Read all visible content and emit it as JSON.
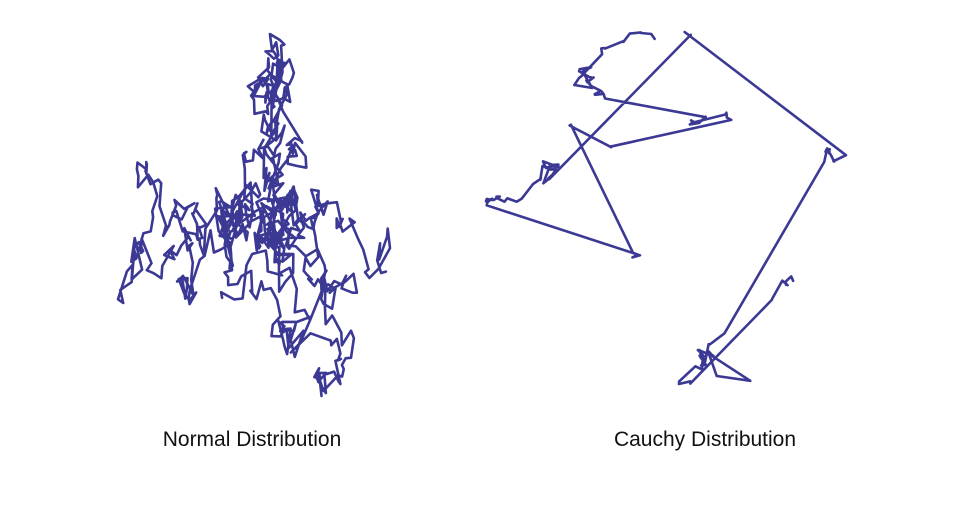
{
  "figure": {
    "line_color": "#3b3994",
    "background": "#ffffff",
    "panels": [
      {
        "id": "normal",
        "caption": "Normal Distribution",
        "distribution": "normal",
        "steps": 700
      },
      {
        "id": "cauchy",
        "caption": "Cauchy Distribution",
        "distribution": "cauchy",
        "steps": 150
      }
    ]
  }
}
